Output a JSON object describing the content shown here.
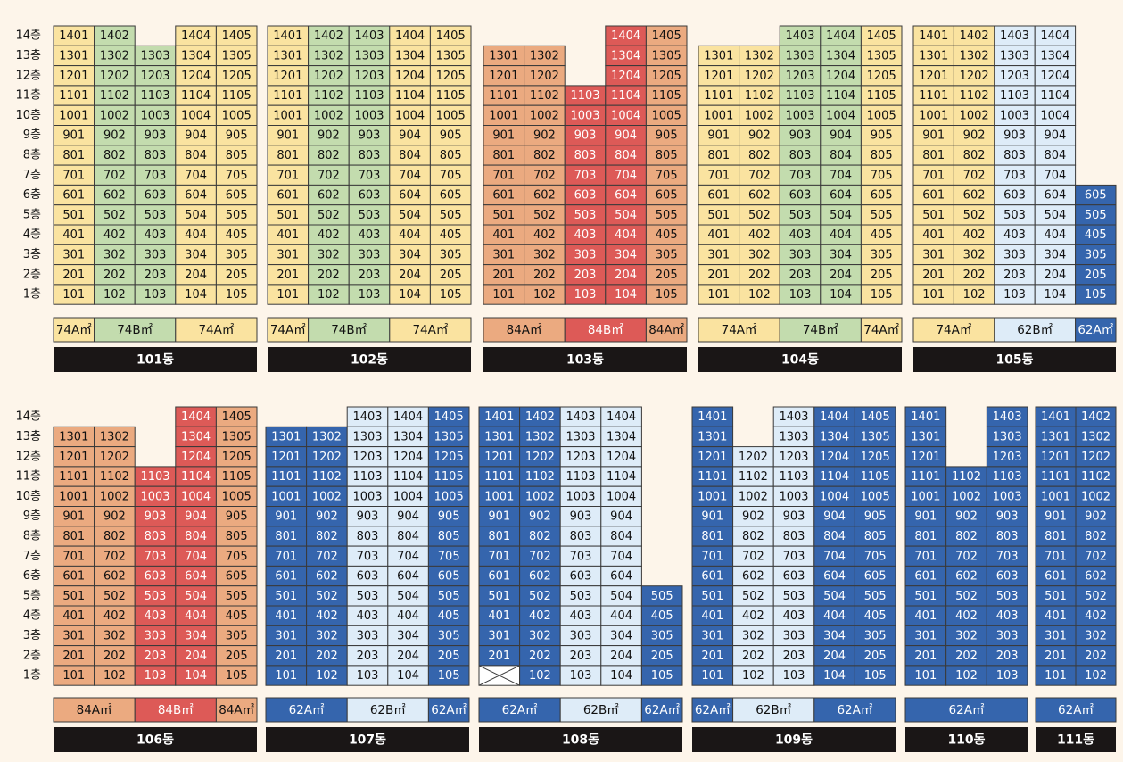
{
  "colors": {
    "74A": "#fae3a0",
    "74B": "#c3dcae",
    "84A": "#ebaa80",
    "84B": "#dd5a57",
    "62A": "#3565ad",
    "62B": "#deecf8",
    "background": "#fdf5ea",
    "building_label_bg": "#1a1616"
  },
  "floor_labels": [
    "14층",
    "13층",
    "12층",
    "11층",
    "10층",
    "9층",
    "8층",
    "7층",
    "6층",
    "5층",
    "4층",
    "3층",
    "2층",
    "1층"
  ],
  "buildings": [
    {
      "name": "101동",
      "lines": [
        {
          "type": "74A",
          "top": 14
        },
        {
          "type": "74B",
          "top": 14
        },
        {
          "type": "74B",
          "top": 13
        },
        {
          "type": "74A",
          "top": 14
        },
        {
          "type": "74A",
          "top": 14
        }
      ],
      "type_segments": [
        {
          "label": "74A㎡",
          "type": "74A",
          "span": 1
        },
        {
          "label": "74B㎡",
          "type": "74B",
          "span": 2
        },
        {
          "label": "74A㎡",
          "type": "74A",
          "span": 2
        }
      ]
    },
    {
      "name": "102동",
      "lines": [
        {
          "type": "74A",
          "top": 14
        },
        {
          "type": "74B",
          "top": 14
        },
        {
          "type": "74B",
          "top": 14
        },
        {
          "type": "74A",
          "top": 14
        },
        {
          "type": "74A",
          "top": 14
        }
      ],
      "type_segments": [
        {
          "label": "74A㎡",
          "type": "74A",
          "span": 1
        },
        {
          "label": "74B㎡",
          "type": "74B",
          "span": 2
        },
        {
          "label": "74A㎡",
          "type": "74A",
          "span": 2
        }
      ]
    },
    {
      "name": "103동",
      "lines": [
        {
          "type": "84A",
          "top": 13
        },
        {
          "type": "84A",
          "top": 13
        },
        {
          "type": "84B",
          "top": 11
        },
        {
          "type": "84B",
          "top": 14
        },
        {
          "type": "84A",
          "top": 14
        }
      ],
      "type_segments": [
        {
          "label": "84A㎡",
          "type": "84A",
          "span": 2
        },
        {
          "label": "84B㎡",
          "type": "84B",
          "span": 2
        },
        {
          "label": "84A㎡",
          "type": "84A",
          "span": 1
        }
      ]
    },
    {
      "name": "104동",
      "lines": [
        {
          "type": "74A",
          "top": 13
        },
        {
          "type": "74A",
          "top": 13
        },
        {
          "type": "74B",
          "top": 14
        },
        {
          "type": "74B",
          "top": 14
        },
        {
          "type": "74A",
          "top": 14
        }
      ],
      "type_segments": [
        {
          "label": "74A㎡",
          "type": "74A",
          "span": 2
        },
        {
          "label": "74B㎡",
          "type": "74B",
          "span": 2
        },
        {
          "label": "74A㎡",
          "type": "74A",
          "span": 1
        }
      ]
    },
    {
      "name": "105동",
      "lines": [
        {
          "type": "74A",
          "top": 14
        },
        {
          "type": "74A",
          "top": 14
        },
        {
          "type": "62B",
          "top": 14
        },
        {
          "type": "62B",
          "top": 14
        },
        {
          "type": "62A",
          "top": 6
        }
      ],
      "type_segments": [
        {
          "label": "74A㎡",
          "type": "74A",
          "span": 2
        },
        {
          "label": "62B㎡",
          "type": "62B",
          "span": 2
        },
        {
          "label": "62A㎡",
          "type": "62A",
          "span": 1
        }
      ]
    },
    {
      "name": "106동",
      "lines": [
        {
          "type": "84A",
          "top": 13
        },
        {
          "type": "84A",
          "top": 13
        },
        {
          "type": "84B",
          "top": 11
        },
        {
          "type": "84B",
          "top": 14
        },
        {
          "type": "84A",
          "top": 14
        }
      ],
      "type_segments": [
        {
          "label": "84A㎡",
          "type": "84A",
          "span": 2
        },
        {
          "label": "84B㎡",
          "type": "84B",
          "span": 2
        },
        {
          "label": "84A㎡",
          "type": "84A",
          "span": 1
        }
      ]
    },
    {
      "name": "107동",
      "lines": [
        {
          "type": "62A",
          "top": 13
        },
        {
          "type": "62A",
          "top": 13
        },
        {
          "type": "62B",
          "top": 14
        },
        {
          "type": "62B",
          "top": 14
        },
        {
          "type": "62A",
          "top": 14
        }
      ],
      "type_segments": [
        {
          "label": "62A㎡",
          "type": "62A",
          "span": 2
        },
        {
          "label": "62B㎡",
          "type": "62B",
          "span": 2
        },
        {
          "label": "62A㎡",
          "type": "62A",
          "span": 1
        }
      ]
    },
    {
      "name": "108동",
      "lines": [
        {
          "type": "62A",
          "top": 14,
          "bottom_blocked": true
        },
        {
          "type": "62A",
          "top": 14
        },
        {
          "type": "62B",
          "top": 14
        },
        {
          "type": "62B",
          "top": 14
        },
        {
          "type": "62A",
          "top": 5
        }
      ],
      "type_segments": [
        {
          "label": "62A㎡",
          "type": "62A",
          "span": 2
        },
        {
          "label": "62B㎡",
          "type": "62B",
          "span": 2
        },
        {
          "label": "62A㎡",
          "type": "62A",
          "span": 1
        }
      ]
    },
    {
      "name": "109동",
      "lines": [
        {
          "type": "62A",
          "top": 14
        },
        {
          "type": "62B",
          "top": 12
        },
        {
          "type": "62B",
          "top": 14
        },
        {
          "type": "62A",
          "top": 14
        },
        {
          "type": "62A",
          "top": 14
        }
      ],
      "type_segments": [
        {
          "label": "62A㎡",
          "type": "62A",
          "span": 1
        },
        {
          "label": "62B㎡",
          "type": "62B",
          "span": 2
        },
        {
          "label": "62A㎡",
          "type": "62A",
          "span": 2
        }
      ]
    },
    {
      "name": "110동",
      "lines": [
        {
          "type": "62A",
          "top": 14
        },
        {
          "type": "62A",
          "top": 11
        },
        {
          "type": "62A",
          "top": 14
        }
      ],
      "type_segments": [
        {
          "label": "62A㎡",
          "type": "62A",
          "span": 3
        }
      ]
    },
    {
      "name": "111동",
      "lines": [
        {
          "type": "62A",
          "top": 14
        },
        {
          "type": "62A",
          "top": 14
        }
      ],
      "type_segments": [
        {
          "label": "62A㎡",
          "type": "62A",
          "span": 2
        }
      ]
    }
  ]
}
